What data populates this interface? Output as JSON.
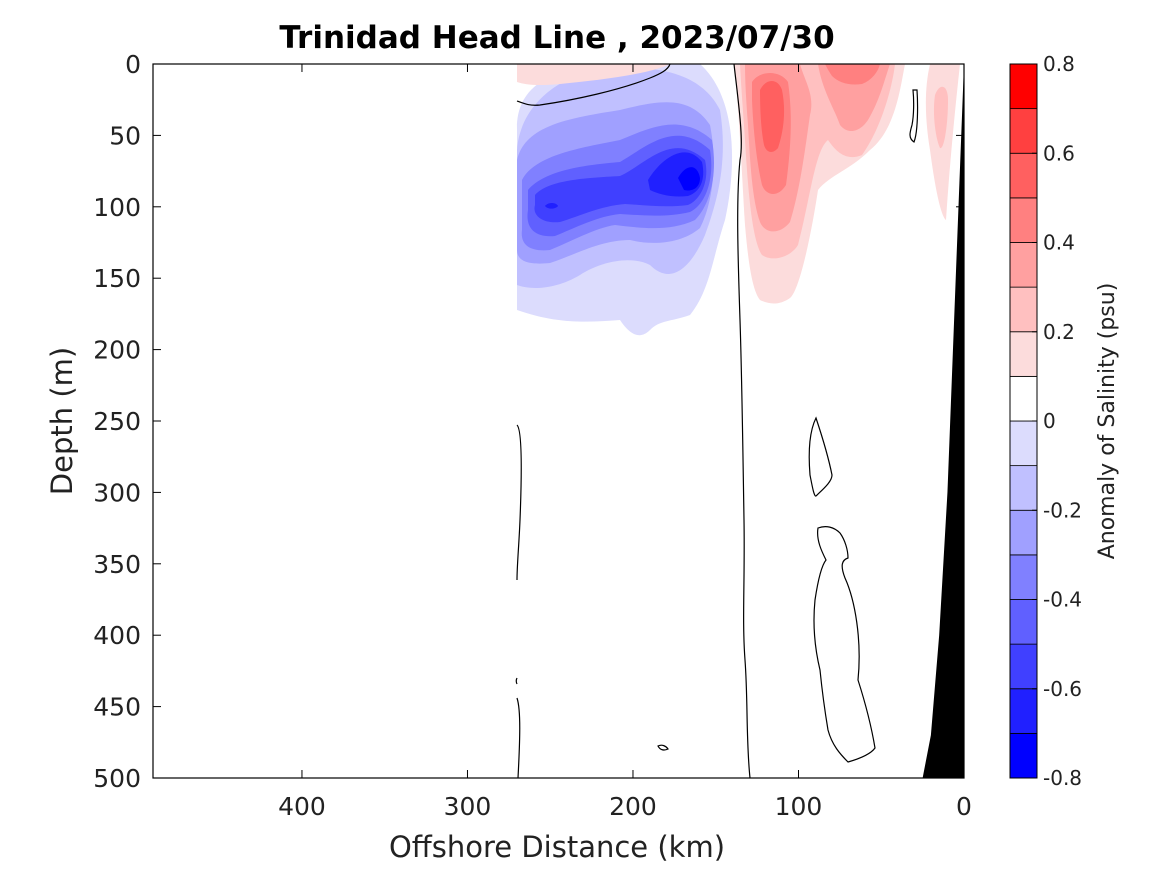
{
  "chart_data": {
    "type": "heatmap",
    "title": "Trinidad Head Line , 2023/07/30",
    "xlabel": "Offshore Distance (km)",
    "ylabel": "Depth (m)",
    "xlim": [
      490,
      0
    ],
    "ylim": [
      0,
      500
    ],
    "x_reversed": true,
    "y_reversed": true,
    "x_ticks": [
      400,
      300,
      200,
      100,
      0
    ],
    "y_ticks": [
      0,
      50,
      100,
      150,
      200,
      250,
      300,
      350,
      400,
      450,
      500
    ],
    "colorbar": {
      "label": "Anomaly of Salinity (psu)",
      "range": [
        -0.8,
        0.8
      ],
      "ticks": [
        -0.8,
        -0.6,
        -0.4,
        -0.2,
        0,
        0.2,
        0.4,
        0.6,
        0.8
      ],
      "levels": [
        -0.8,
        -0.7,
        -0.6,
        -0.5,
        -0.4,
        -0.3,
        -0.2,
        -0.1,
        0,
        0.1,
        0.2,
        0.3,
        0.4,
        0.5,
        0.6,
        0.7,
        0.8
      ],
      "colors": [
        "#0000ff",
        "#2020ff",
        "#4040ff",
        "#6060ff",
        "#8080ff",
        "#a0a0ff",
        "#c0c0ff",
        "#dcdcfd",
        "#ffffff",
        "#ffffff",
        "#fcdcdc",
        "#ffc0c0",
        "#ffa0a0",
        "#ff8080",
        "#ff6060",
        "#ff4040",
        "#ff0000"
      ]
    },
    "regions": [
      {
        "name": "low-salinity-core",
        "x": [
          270,
          130
        ],
        "y": [
          0,
          195
        ],
        "min_value": -0.65
      },
      {
        "name": "high-salinity-core-1",
        "x": [
          140,
          80
        ],
        "y": [
          0,
          165
        ],
        "max_value": 0.5
      },
      {
        "name": "high-salinity-core-2",
        "x": [
          90,
          40
        ],
        "y": [
          0,
          70
        ],
        "max_value": 0.3
      },
      {
        "name": "high-salinity-nearshore",
        "x": [
          25,
          10
        ],
        "y": [
          0,
          110
        ],
        "max_value": 0.3
      }
    ],
    "contour_level": 0,
    "bathymetry": {
      "x": [
        0,
        2,
        5,
        10,
        15,
        20,
        25
      ],
      "y": [
        0,
        60,
        150,
        300,
        400,
        470,
        500
      ]
    }
  }
}
